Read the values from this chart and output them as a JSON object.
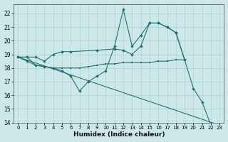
{
  "xlabel": "Humidex (Indice chaleur)",
  "bg_color": "#cce8e8",
  "grid_color": "#b0d0d0",
  "line_color": "#1a6b6b",
  "ylim_min": 14,
  "ylim_max": 22.7,
  "xlim_min": -0.5,
  "xlim_max": 23.5,
  "yticks": [
    14,
    15,
    16,
    17,
    18,
    19,
    20,
    21,
    22
  ],
  "xticks": [
    0,
    1,
    2,
    3,
    4,
    5,
    6,
    7,
    8,
    9,
    10,
    11,
    12,
    13,
    14,
    15,
    16,
    17,
    18,
    19,
    20,
    21,
    22,
    23
  ],
  "line_top": {
    "x": [
      0,
      1,
      2,
      3,
      4,
      5,
      6,
      9,
      11,
      12,
      13,
      14,
      15,
      16,
      17,
      18,
      19
    ],
    "y": [
      18.8,
      18.8,
      18.8,
      18.5,
      19.0,
      19.2,
      19.2,
      19.3,
      19.4,
      19.3,
      19.0,
      19.6,
      21.3,
      21.3,
      21.0,
      20.6,
      18.6
    ]
  },
  "line_mid": {
    "x": [
      0,
      1,
      2,
      3,
      4,
      5,
      6,
      7,
      8,
      9,
      10,
      11,
      12,
      13,
      14,
      15,
      16,
      17,
      18,
      19
    ],
    "y": [
      18.8,
      18.8,
      18.2,
      18.1,
      18.0,
      18.0,
      18.0,
      18.0,
      18.1,
      18.2,
      18.3,
      18.3,
      18.4,
      18.4,
      18.4,
      18.4,
      18.5,
      18.5,
      18.6,
      18.6
    ]
  },
  "line_peak": {
    "x": [
      0,
      1,
      2,
      3,
      4,
      5,
      6,
      7,
      8,
      9,
      10,
      11,
      12,
      13,
      14,
      15,
      16,
      17,
      18,
      19,
      20,
      21,
      22
    ],
    "y": [
      18.8,
      18.5,
      18.2,
      18.1,
      18.0,
      17.8,
      17.4,
      16.3,
      17.0,
      17.4,
      17.8,
      19.6,
      22.3,
      19.6,
      20.4,
      21.3,
      21.3,
      21.0,
      20.6,
      18.6,
      16.5,
      15.5,
      13.8
    ]
  },
  "line_diag": {
    "x": [
      0,
      23
    ],
    "y": [
      18.8,
      13.8
    ]
  }
}
